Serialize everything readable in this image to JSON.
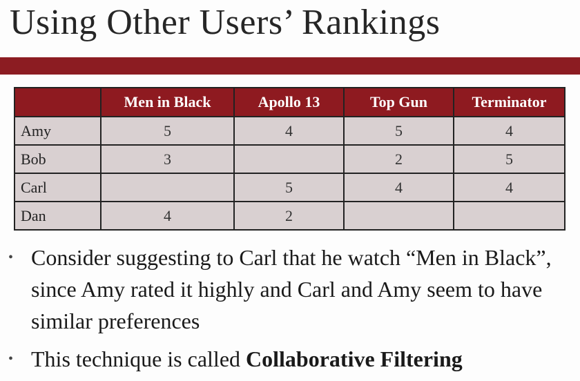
{
  "slide": {
    "title": "Using Other Users’ Rankings",
    "accent_color": "#8c1c22"
  },
  "table": {
    "columns": [
      "",
      "Men in Black",
      "Apollo 13",
      "Top Gun",
      "Terminator"
    ],
    "rows": [
      {
        "name": "Amy",
        "ratings": [
          "5",
          "4",
          "5",
          "4"
        ]
      },
      {
        "name": "Bob",
        "ratings": [
          "3",
          "",
          "2",
          "5"
        ]
      },
      {
        "name": "Carl",
        "ratings": [
          "",
          "5",
          "4",
          "4"
        ]
      },
      {
        "name": "Dan",
        "ratings": [
          "4",
          "2",
          "",
          ""
        ]
      }
    ]
  },
  "bullets": {
    "marker": "•",
    "item1": "Consider suggesting to Carl that he watch “Men in Black”, since Amy rated it highly and Carl and Amy seem to have similar preferences",
    "item2_prefix": "This technique is called ",
    "item2_bold": "Collaborative Filtering"
  }
}
